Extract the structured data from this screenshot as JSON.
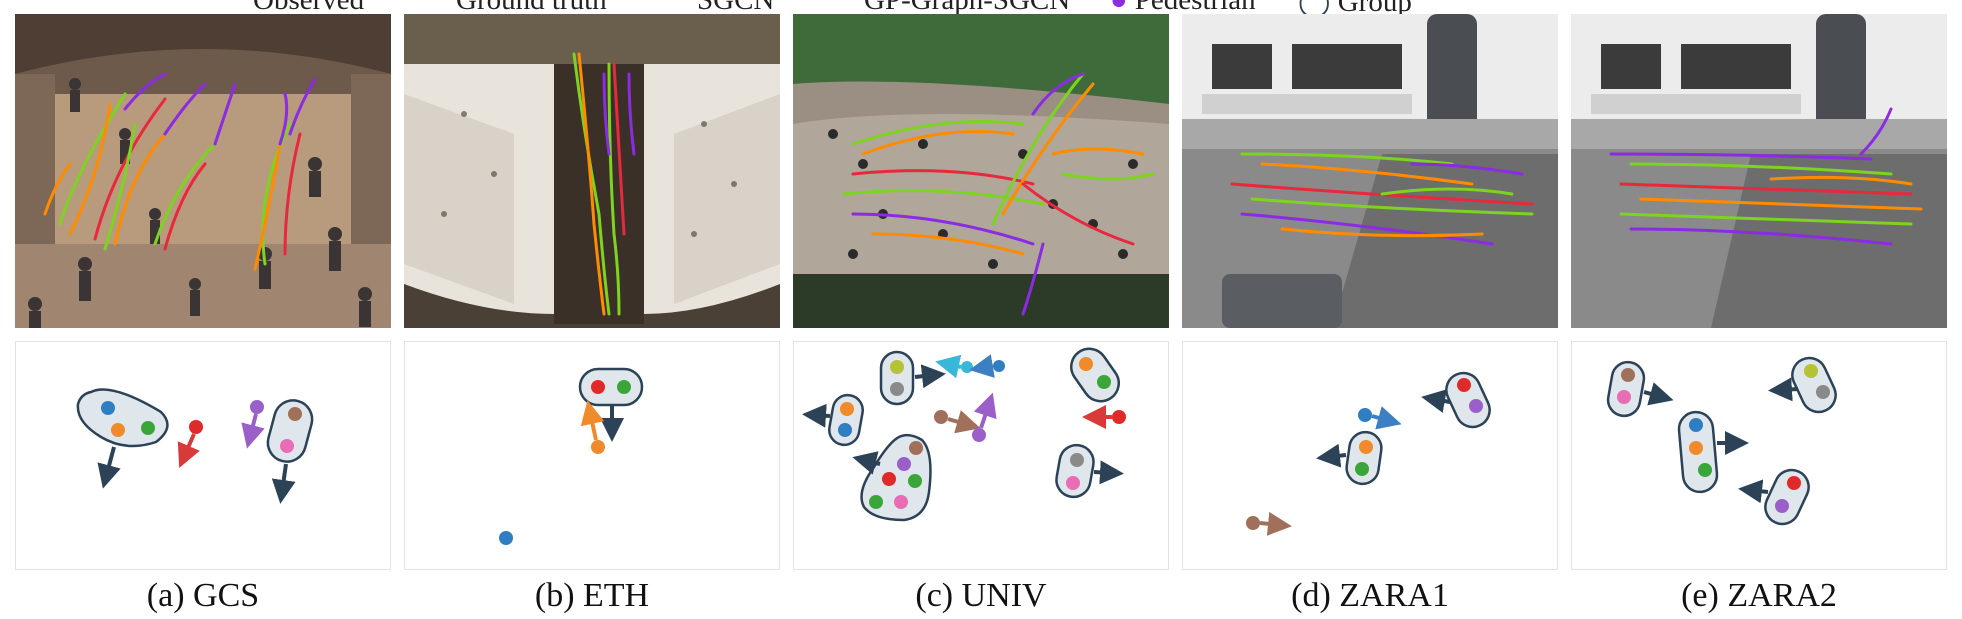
{
  "legend": {
    "items": [
      {
        "label": "Observed",
        "color": "#8b2be2"
      },
      {
        "label": "Ground truth",
        "color": "#7ed321"
      },
      {
        "label": "SGCN",
        "color": "#ff8c00"
      },
      {
        "label": "GP-Graph-SGCN",
        "color": "#e8283c"
      },
      {
        "label": "Pedestrian",
        "icon": "pedestrian-dot-icon",
        "color": "#8b2be2"
      },
      {
        "label": "Group",
        "icon": "group-outline-icon",
        "color": "#2e4a62"
      }
    ]
  },
  "colors": {
    "observed": "#8b2be2",
    "ground_truth": "#7ed321",
    "sgcn": "#ff8c00",
    "gpgraph": "#e8283c",
    "group_fill": "#dfe6ec",
    "group_stroke": "#2c4257",
    "arrow": "#2c4257"
  },
  "panels": [
    {
      "id": "gcs",
      "caption": "(a) GCS"
    },
    {
      "id": "eth",
      "caption": "(b) ETH"
    },
    {
      "id": "univ",
      "caption": "(c) UNIV"
    },
    {
      "id": "zara1",
      "caption": "(d) ZARA1"
    },
    {
      "id": "zara2",
      "caption": "(e) ZARA2"
    }
  ]
}
